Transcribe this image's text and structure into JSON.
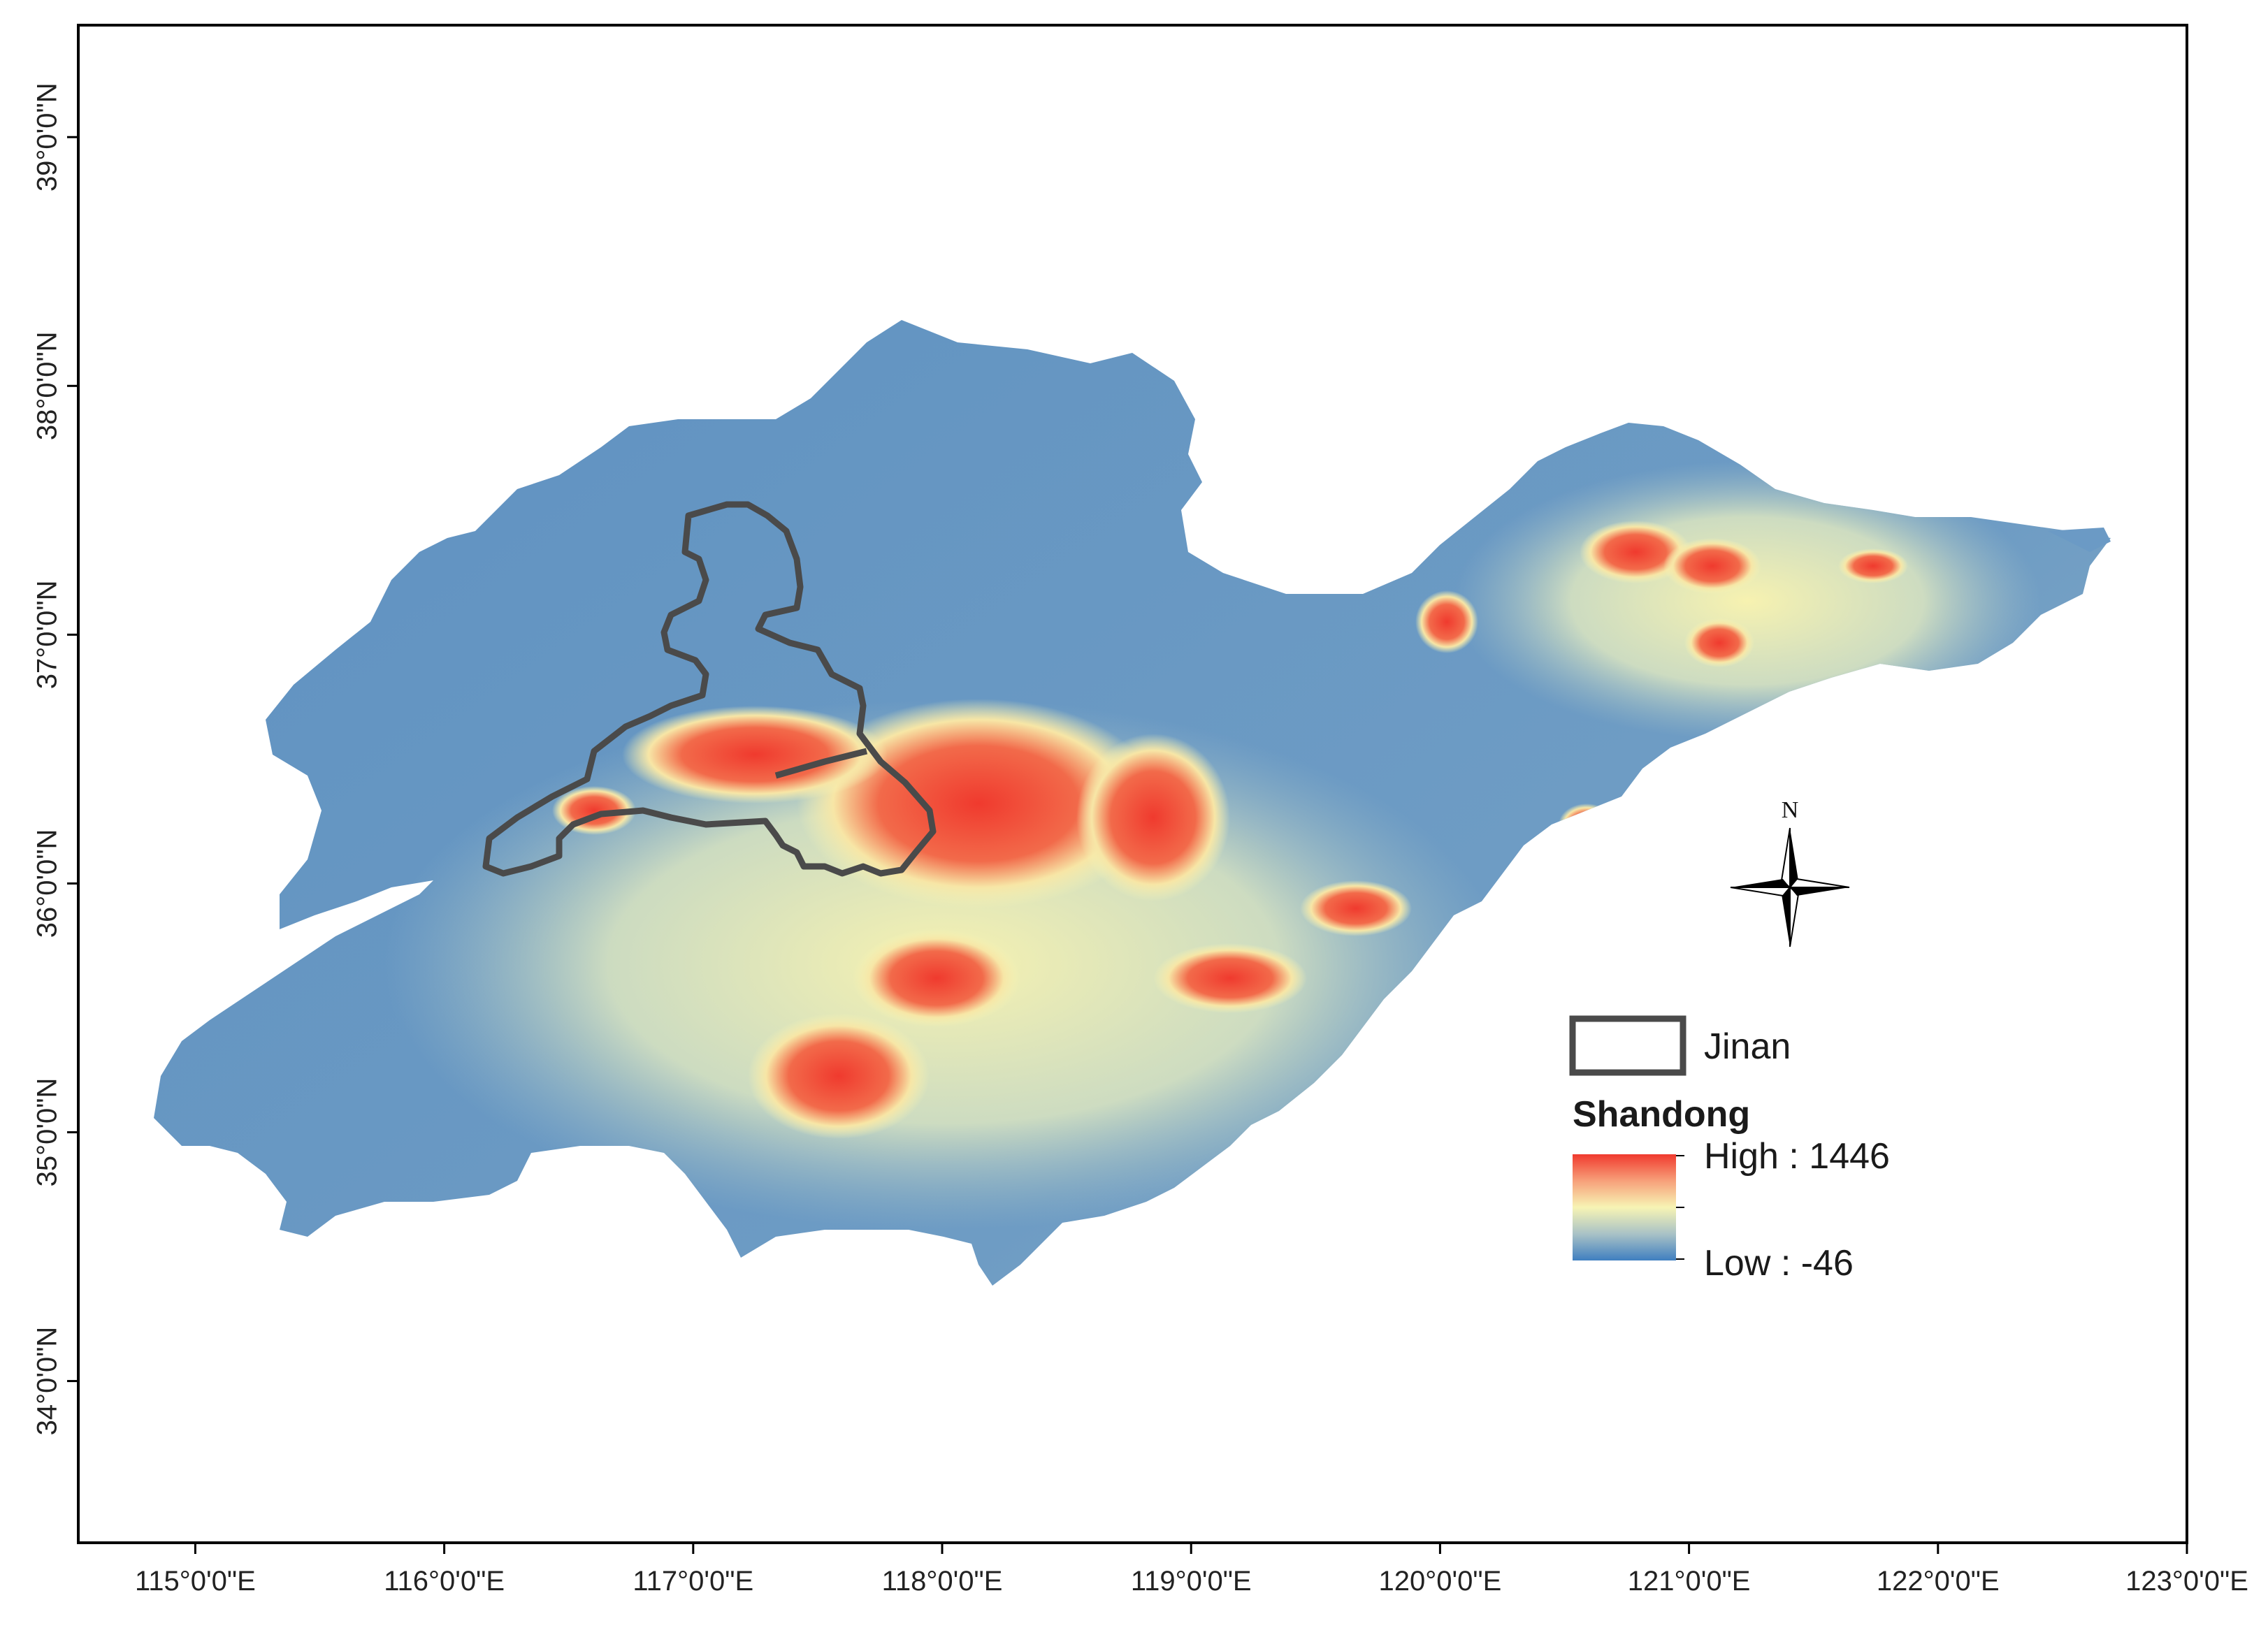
{
  "map": {
    "x_axis": {
      "range": [
        114.53,
        123.0
      ],
      "ticks": [
        "115°0'0\"E",
        "116°0'0\"E",
        "117°0'0\"E",
        "118°0'0\"E",
        "119°0'0\"E",
        "120°0'0\"E",
        "121°0'0\"E",
        "122°0'0\"E",
        "123°0'0\"E"
      ],
      "tick_values": [
        115,
        116,
        117,
        118,
        119,
        120,
        121,
        122,
        123
      ]
    },
    "y_axis": {
      "range": [
        33.35,
        39.45
      ],
      "ticks": [
        "34°0'0\"N",
        "35°0'0\"N",
        "36°0'0\"N",
        "37°0'0\"N",
        "38°0'0\"N",
        "39°0'0\"N"
      ],
      "tick_values": [
        34,
        35,
        36,
        37,
        38,
        39
      ]
    },
    "north_arrow_label": "N",
    "colors": {
      "high": "#f03a2e",
      "mid": "#f7f4b4",
      "low": "#4f88c0",
      "boundary": "#4a4a4a",
      "frame": "#000000"
    }
  },
  "legend": {
    "boundary_label": "Jinan",
    "raster_title": "Shandong",
    "high_label": "High : 1446",
    "low_label": "Low : -46"
  }
}
